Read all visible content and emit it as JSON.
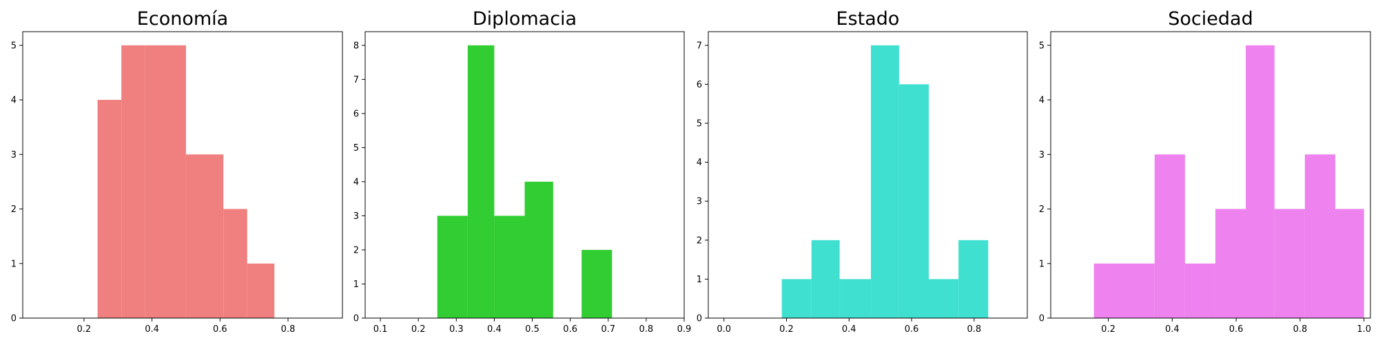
{
  "chart_data": [
    {
      "type": "bar",
      "title": "Economía",
      "color": "#F08080",
      "xlim": [
        0.02,
        0.96
      ],
      "ylim": [
        0,
        5.25
      ],
      "xticks": [
        "0.2",
        "0.4",
        "0.6",
        "0.8"
      ],
      "yticks": [
        "0",
        "1",
        "2",
        "3",
        "4",
        "5"
      ],
      "bins": [
        {
          "x0": 0.24,
          "x1": 0.31,
          "value": 4
        },
        {
          "x0": 0.31,
          "x1": 0.38,
          "value": 5
        },
        {
          "x0": 0.38,
          "x1": 0.5,
          "value": 5
        },
        {
          "x0": 0.5,
          "x1": 0.61,
          "value": 3
        },
        {
          "x0": 0.61,
          "x1": 0.68,
          "value": 2
        },
        {
          "x0": 0.68,
          "x1": 0.76,
          "value": 1
        }
      ]
    },
    {
      "type": "bar",
      "title": "Diplomacia",
      "color": "#32CD32",
      "xlim": [
        0.06,
        0.9
      ],
      "ylim": [
        0,
        8.4
      ],
      "xticks": [
        "0.1",
        "0.2",
        "0.3",
        "0.4",
        "0.5",
        "0.6",
        "0.7",
        "0.8",
        "0.9"
      ],
      "yticks": [
        "0",
        "1",
        "2",
        "3",
        "4",
        "5",
        "6",
        "7",
        "8"
      ],
      "bins": [
        {
          "x0": 0.25,
          "x1": 0.33,
          "value": 3
        },
        {
          "x0": 0.33,
          "x1": 0.4,
          "value": 8
        },
        {
          "x0": 0.4,
          "x1": 0.48,
          "value": 3
        },
        {
          "x0": 0.48,
          "x1": 0.555,
          "value": 4
        },
        {
          "x0": 0.555,
          "x1": 0.63,
          "value": 0
        },
        {
          "x0": 0.63,
          "x1": 0.71,
          "value": 2
        }
      ]
    },
    {
      "type": "bar",
      "title": "Estado",
      "color": "#40E0D0",
      "xlim": [
        -0.05,
        0.97
      ],
      "ylim": [
        0,
        7.35
      ],
      "xticks": [
        "0.0",
        "0.2",
        "0.4",
        "0.6",
        "0.8"
      ],
      "yticks": [
        "0",
        "1",
        "2",
        "3",
        "4",
        "5",
        "6",
        "7"
      ],
      "bins": [
        {
          "x0": 0.185,
          "x1": 0.28,
          "value": 1
        },
        {
          "x0": 0.28,
          "x1": 0.37,
          "value": 2
        },
        {
          "x0": 0.37,
          "x1": 0.47,
          "value": 1
        },
        {
          "x0": 0.47,
          "x1": 0.56,
          "value": 7
        },
        {
          "x0": 0.56,
          "x1": 0.655,
          "value": 6
        },
        {
          "x0": 0.655,
          "x1": 0.75,
          "value": 1
        },
        {
          "x0": 0.75,
          "x1": 0.845,
          "value": 2
        }
      ]
    },
    {
      "type": "bar",
      "title": "Sociedad",
      "color": "#EE82EE",
      "xlim": [
        0.02,
        1.02
      ],
      "ylim": [
        0,
        5.25
      ],
      "xticks": [
        "0.2",
        "0.4",
        "0.6",
        "0.8",
        "1.0"
      ],
      "yticks": [
        "0",
        "1",
        "2",
        "3",
        "4",
        "5"
      ],
      "bins": [
        {
          "x0": 0.155,
          "x1": 0.345,
          "value": 1
        },
        {
          "x0": 0.345,
          "x1": 0.44,
          "value": 3
        },
        {
          "x0": 0.44,
          "x1": 0.535,
          "value": 1
        },
        {
          "x0": 0.535,
          "x1": 0.63,
          "value": 2
        },
        {
          "x0": 0.63,
          "x1": 0.72,
          "value": 5
        },
        {
          "x0": 0.72,
          "x1": 0.815,
          "value": 2
        },
        {
          "x0": 0.815,
          "x1": 0.91,
          "value": 3
        },
        {
          "x0": 0.91,
          "x1": 1.0,
          "value": 2
        }
      ]
    }
  ]
}
